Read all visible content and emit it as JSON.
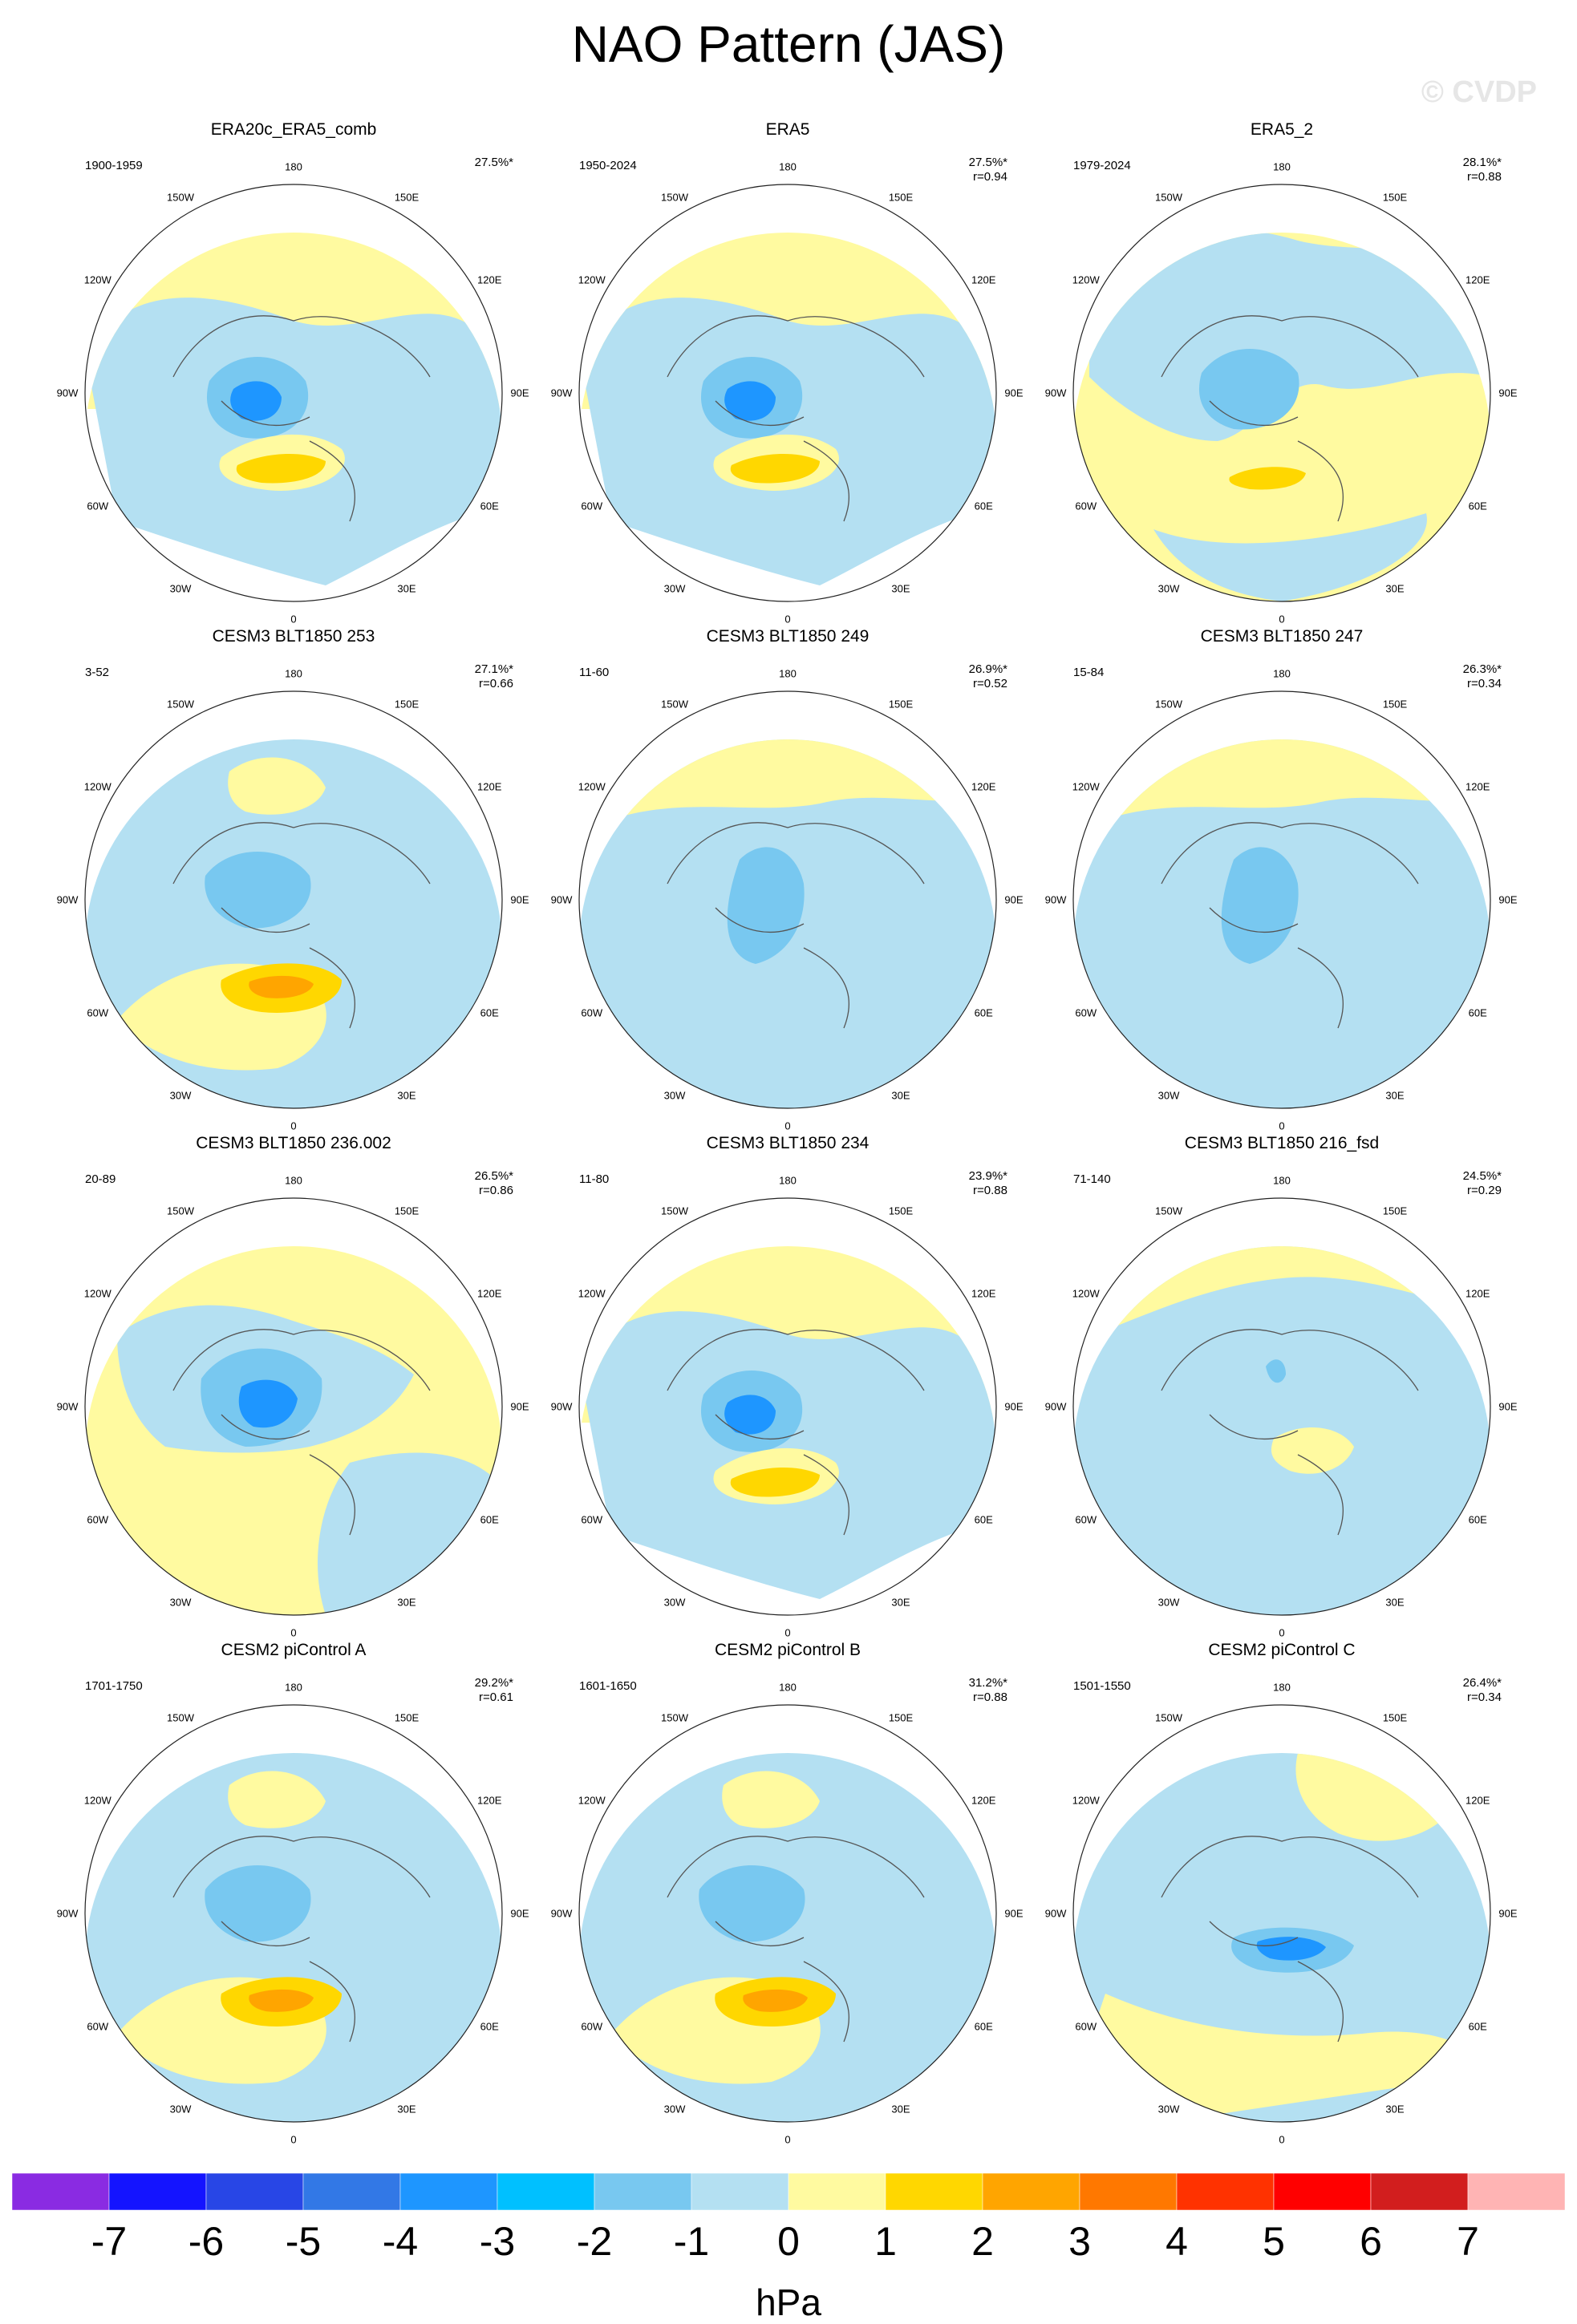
{
  "title": "NAO Pattern (JAS)",
  "watermark": "© CVDP",
  "longitude_labels": [
    "180",
    "150E",
    "120E",
    "90E",
    "60E",
    "30E",
    "0",
    "30W",
    "60W",
    "90W",
    "120W",
    "150W"
  ],
  "panels": [
    {
      "title": "ERA20c_ERA5_comb",
      "years": "1900-1959",
      "pct": "27.5%*",
      "r": "",
      "variant": 0
    },
    {
      "title": "ERA5",
      "years": "1950-2024",
      "pct": "27.5%*",
      "r": "r=0.94",
      "variant": 0
    },
    {
      "title": "ERA5_2",
      "years": "1979-2024",
      "pct": "28.1%*",
      "r": "r=0.88",
      "variant": 1
    },
    {
      "title": "CESM3 BLT1850 253",
      "years": "3-52",
      "pct": "27.1%*",
      "r": "r=0.66",
      "variant": 2
    },
    {
      "title": "CESM3 BLT1850 249",
      "years": "11-60",
      "pct": "26.9%*",
      "r": "r=0.52",
      "variant": 3
    },
    {
      "title": "CESM3 BLT1850 247",
      "years": "15-84",
      "pct": "26.3%*",
      "r": "r=0.34",
      "variant": 3
    },
    {
      "title": "CESM3 BLT1850 236.002",
      "years": "20-89",
      "pct": "26.5%*",
      "r": "r=0.86",
      "variant": 4
    },
    {
      "title": "CESM3 BLT1850 234",
      "years": "11-80",
      "pct": "23.9%*",
      "r": "r=0.88",
      "variant": 0
    },
    {
      "title": "CESM3 BLT1850 216_fsd",
      "years": "71-140",
      "pct": "24.5%*",
      "r": "r=0.29",
      "variant": 5
    },
    {
      "title": "CESM2 piControl A",
      "years": "1701-1750",
      "pct": "29.2%*",
      "r": "r=0.61",
      "variant": 2
    },
    {
      "title": "CESM2 piControl B",
      "years": "1601-1650",
      "pct": "31.2%*",
      "r": "r=0.88",
      "variant": 2
    },
    {
      "title": "CESM2 piControl C",
      "years": "1501-1550",
      "pct": "26.4%*",
      "r": "r=0.34",
      "variant": 6
    }
  ],
  "colorbar": {
    "units": "hPa",
    "labels": [
      "-7",
      "-6",
      "-5",
      "-4",
      "-3",
      "-2",
      "-1",
      "0",
      "1",
      "2",
      "3",
      "4",
      "5",
      "6",
      "7"
    ],
    "colors": [
      "#8a2be2",
      "#1414ff",
      "#2846e6",
      "#3278e6",
      "#1e96ff",
      "#00c0ff",
      "#78c8f0",
      "#b4e0f2",
      "#fffaa0",
      "#ffd700",
      "#ffa500",
      "#ff7800",
      "#ff3200",
      "#ff0000",
      "#d21e1e",
      "#ffb4b4"
    ]
  }
}
